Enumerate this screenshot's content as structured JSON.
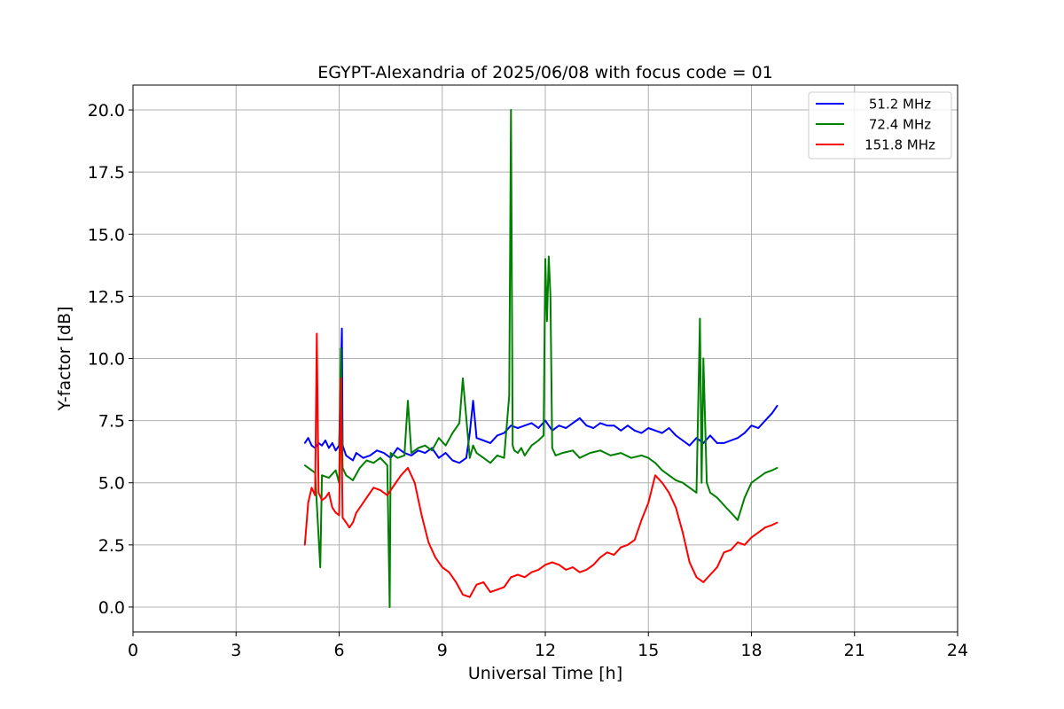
{
  "chart_data": {
    "type": "line",
    "title": "EGYPT-Alexandria of 2025/06/08 with focus code = 01",
    "xlabel": "Universal Time [h]",
    "ylabel": "Y-factor [dB]",
    "xlim": [
      0,
      24
    ],
    "ylim": [
      -1.0,
      21.0
    ],
    "x_ticks": [
      0,
      3,
      6,
      9,
      12,
      15,
      18,
      21,
      24
    ],
    "x_tick_labels": [
      "0",
      "3",
      "6",
      "9",
      "12",
      "15",
      "18",
      "21",
      "24"
    ],
    "y_ticks": [
      0.0,
      2.5,
      5.0,
      7.5,
      10.0,
      12.5,
      15.0,
      17.5,
      20.0
    ],
    "y_tick_labels": [
      "0.0",
      "2.5",
      "5.0",
      "7.5",
      "10.0",
      "12.5",
      "15.0",
      "17.5",
      "20.0"
    ],
    "grid": true,
    "legend_position": "top-right",
    "series": [
      {
        "name": "51.2 MHz",
        "color": "#0000ff",
        "x": [
          5.0,
          5.1,
          5.2,
          5.3,
          5.4,
          5.5,
          5.6,
          5.7,
          5.8,
          5.9,
          6.0,
          6.05,
          6.08,
          6.1,
          6.2,
          6.3,
          6.4,
          6.5,
          6.7,
          6.9,
          7.1,
          7.3,
          7.5,
          7.7,
          7.9,
          8.1,
          8.3,
          8.5,
          8.7,
          8.9,
          9.1,
          9.3,
          9.5,
          9.7,
          9.8,
          9.9,
          10.0,
          10.2,
          10.4,
          10.6,
          10.8,
          11.0,
          11.2,
          11.4,
          11.6,
          11.8,
          12.0,
          12.2,
          12.4,
          12.6,
          12.8,
          13.0,
          13.2,
          13.4,
          13.6,
          13.8,
          14.0,
          14.2,
          14.4,
          14.6,
          14.8,
          15.0,
          15.2,
          15.4,
          15.6,
          15.8,
          16.0,
          16.2,
          16.4,
          16.6,
          16.8,
          17.0,
          17.2,
          17.4,
          17.6,
          17.8,
          18.0,
          18.2,
          18.4,
          18.6,
          18.75
        ],
        "y": [
          6.6,
          6.8,
          6.5,
          6.4,
          6.6,
          6.5,
          6.7,
          6.4,
          6.6,
          6.3,
          6.5,
          9.5,
          11.2,
          6.5,
          6.1,
          6.0,
          5.9,
          6.2,
          6.0,
          6.1,
          6.3,
          6.2,
          6.0,
          6.4,
          6.2,
          6.1,
          6.3,
          6.2,
          6.4,
          6.0,
          6.2,
          5.9,
          5.8,
          6.0,
          7.0,
          8.3,
          6.8,
          6.7,
          6.6,
          6.9,
          7.0,
          7.3,
          7.2,
          7.3,
          7.4,
          7.2,
          7.5,
          7.1,
          7.3,
          7.2,
          7.4,
          7.6,
          7.3,
          7.2,
          7.4,
          7.3,
          7.3,
          7.1,
          7.3,
          7.1,
          7.0,
          7.2,
          7.1,
          7.0,
          7.2,
          6.9,
          6.7,
          6.5,
          6.8,
          6.6,
          6.9,
          6.6,
          6.6,
          6.7,
          6.8,
          7.0,
          7.3,
          7.2,
          7.5,
          7.8,
          8.1
        ]
      },
      {
        "name": "72.4 MHz",
        "color": "#008000",
        "x": [
          5.0,
          5.2,
          5.3,
          5.45,
          5.5,
          5.7,
          5.9,
          6.0,
          6.05,
          6.1,
          6.2,
          6.4,
          6.6,
          6.8,
          7.0,
          7.2,
          7.4,
          7.47,
          7.5,
          7.7,
          7.9,
          8.0,
          8.1,
          8.3,
          8.5,
          8.7,
          8.9,
          9.1,
          9.3,
          9.5,
          9.6,
          9.7,
          9.8,
          9.9,
          10.0,
          10.2,
          10.4,
          10.6,
          10.8,
          10.95,
          11.0,
          11.05,
          11.1,
          11.2,
          11.3,
          11.4,
          11.6,
          11.8,
          11.95,
          12.0,
          12.05,
          12.1,
          12.15,
          12.2,
          12.3,
          12.5,
          12.8,
          13.0,
          13.3,
          13.6,
          13.9,
          14.2,
          14.5,
          14.8,
          15.0,
          15.2,
          15.4,
          15.6,
          15.8,
          16.0,
          16.2,
          16.4,
          16.5,
          16.55,
          16.6,
          16.7,
          16.8,
          17.0,
          17.2,
          17.4,
          17.6,
          17.8,
          18.0,
          18.2,
          18.4,
          18.6,
          18.75
        ],
        "y": [
          5.7,
          5.5,
          5.4,
          1.6,
          5.3,
          5.2,
          5.5,
          5.0,
          10.4,
          5.6,
          5.3,
          5.1,
          5.6,
          5.9,
          5.8,
          6.0,
          5.7,
          0.0,
          6.2,
          6.0,
          6.1,
          8.3,
          6.2,
          6.4,
          6.5,
          6.3,
          6.8,
          6.5,
          7.0,
          7.4,
          9.2,
          7.6,
          6.0,
          6.5,
          6.2,
          6.0,
          5.8,
          6.1,
          6.0,
          8.5,
          20.0,
          6.5,
          6.3,
          6.2,
          6.4,
          6.1,
          6.5,
          6.7,
          6.9,
          14.0,
          11.5,
          14.1,
          12.5,
          6.4,
          6.1,
          6.2,
          6.3,
          6.0,
          6.2,
          6.3,
          6.1,
          6.2,
          6.0,
          6.1,
          6.0,
          5.8,
          5.5,
          5.3,
          5.1,
          5.0,
          4.8,
          4.6,
          11.6,
          5.0,
          10.0,
          5.0,
          4.6,
          4.4,
          4.1,
          3.8,
          3.5,
          4.4,
          5.0,
          5.2,
          5.4,
          5.5,
          5.6
        ]
      },
      {
        "name": "151.8 MHz",
        "color": "#ff0000",
        "x": [
          5.0,
          5.1,
          5.2,
          5.3,
          5.35,
          5.4,
          5.5,
          5.6,
          5.7,
          5.8,
          5.9,
          6.0,
          6.05,
          6.1,
          6.2,
          6.3,
          6.4,
          6.5,
          6.6,
          6.8,
          7.0,
          7.2,
          7.4,
          7.6,
          7.8,
          8.0,
          8.2,
          8.4,
          8.6,
          8.8,
          9.0,
          9.2,
          9.4,
          9.6,
          9.8,
          10.0,
          10.2,
          10.4,
          10.6,
          10.8,
          11.0,
          11.2,
          11.4,
          11.6,
          11.8,
          12.0,
          12.2,
          12.4,
          12.6,
          12.8,
          13.0,
          13.2,
          13.4,
          13.6,
          13.8,
          14.0,
          14.2,
          14.4,
          14.6,
          14.8,
          15.0,
          15.2,
          15.4,
          15.6,
          15.8,
          16.0,
          16.2,
          16.4,
          16.6,
          16.8,
          17.0,
          17.2,
          17.4,
          17.6,
          17.8,
          18.0,
          18.2,
          18.4,
          18.6,
          18.75
        ],
        "y": [
          2.5,
          4.2,
          4.8,
          4.5,
          11.0,
          4.6,
          4.3,
          4.4,
          4.6,
          4.0,
          3.8,
          3.7,
          9.2,
          3.6,
          3.4,
          3.2,
          3.4,
          3.8,
          4.0,
          4.4,
          4.8,
          4.7,
          4.5,
          4.9,
          5.3,
          5.6,
          5.0,
          3.7,
          2.6,
          2.0,
          1.6,
          1.4,
          1.0,
          0.5,
          0.4,
          0.9,
          1.0,
          0.6,
          0.7,
          0.8,
          1.2,
          1.3,
          1.2,
          1.4,
          1.5,
          1.7,
          1.8,
          1.7,
          1.5,
          1.6,
          1.4,
          1.5,
          1.7,
          2.0,
          2.2,
          2.1,
          2.4,
          2.5,
          2.7,
          3.5,
          4.2,
          5.3,
          5.0,
          4.6,
          4.0,
          3.0,
          1.8,
          1.2,
          1.0,
          1.3,
          1.6,
          2.2,
          2.3,
          2.6,
          2.5,
          2.8,
          3.0,
          3.2,
          3.3,
          3.4
        ]
      }
    ]
  }
}
